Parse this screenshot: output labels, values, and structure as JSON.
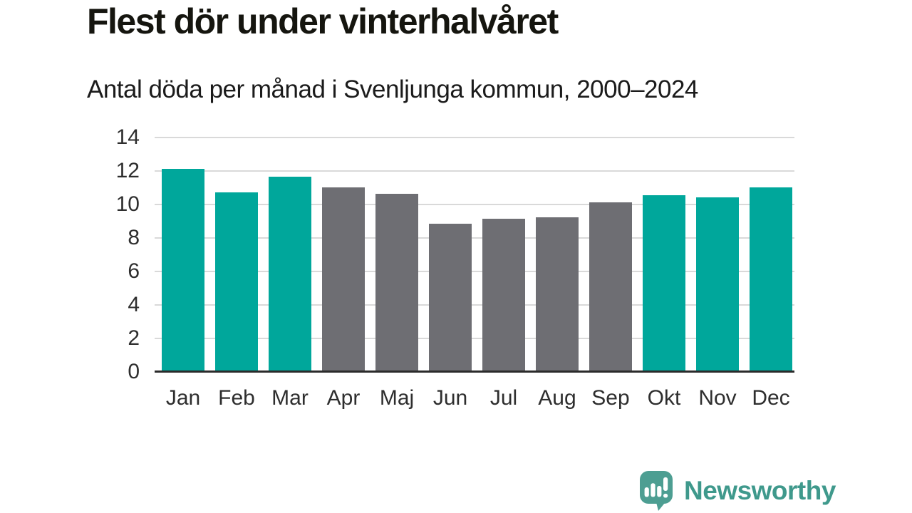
{
  "chart_data": {
    "type": "bar",
    "title": "Flest dör under vinterhalvåret",
    "subtitle": "Antal döda per månad i Svenljunga kommun, 2000–2024",
    "categories": [
      "Jan",
      "Feb",
      "Mar",
      "Apr",
      "Maj",
      "Jun",
      "Jul",
      "Aug",
      "Sep",
      "Okt",
      "Nov",
      "Dec"
    ],
    "values": [
      12.1,
      10.7,
      11.6,
      11.0,
      10.6,
      8.8,
      9.1,
      9.2,
      10.1,
      10.5,
      10.4,
      11.0
    ],
    "highlight_winter": [
      true,
      true,
      true,
      false,
      false,
      false,
      false,
      false,
      false,
      true,
      true,
      true
    ],
    "xlabel": "",
    "ylabel": "",
    "ylim": [
      0,
      14
    ],
    "yticks": [
      0,
      2,
      4,
      6,
      8,
      10,
      12,
      14
    ],
    "grid": "horizontal",
    "legend": "none",
    "colors": {
      "winter_bar": "#00a79b",
      "summer_bar": "#6e6e73",
      "gridline": "#d9d9d9",
      "axis_line": "#2b2b2b",
      "tick_label": "#2e2e2e",
      "title_text": "#15150f"
    }
  },
  "footer": {
    "logo_text": "Newsworthy",
    "logo_icon": "speech-bubble-bar-chart-exclamation",
    "logo_icon_color": "#4d9e92",
    "logo_text_color": "#3f998c"
  }
}
